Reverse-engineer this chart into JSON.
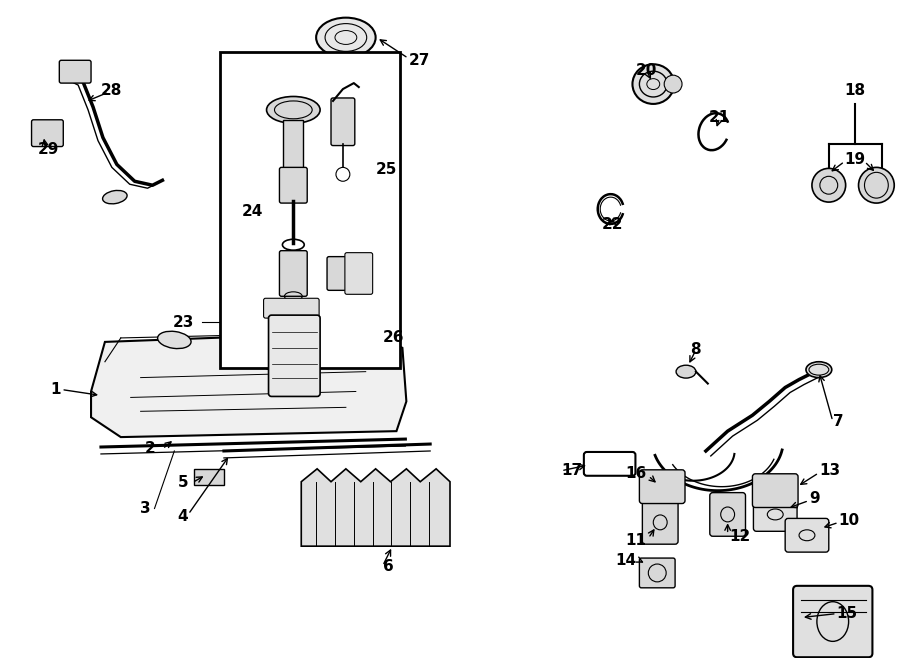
{
  "bg_color": "#ffffff",
  "line_color": "#000000",
  "label_fontsize": 11,
  "fig_width": 9.0,
  "fig_height": 6.61,
  "tank_fill": "#f0f0f0",
  "part_fill": "#e0e0e0",
  "part_fill2": "#d8d8d8",
  "part_fill3": "#e8e8e8"
}
